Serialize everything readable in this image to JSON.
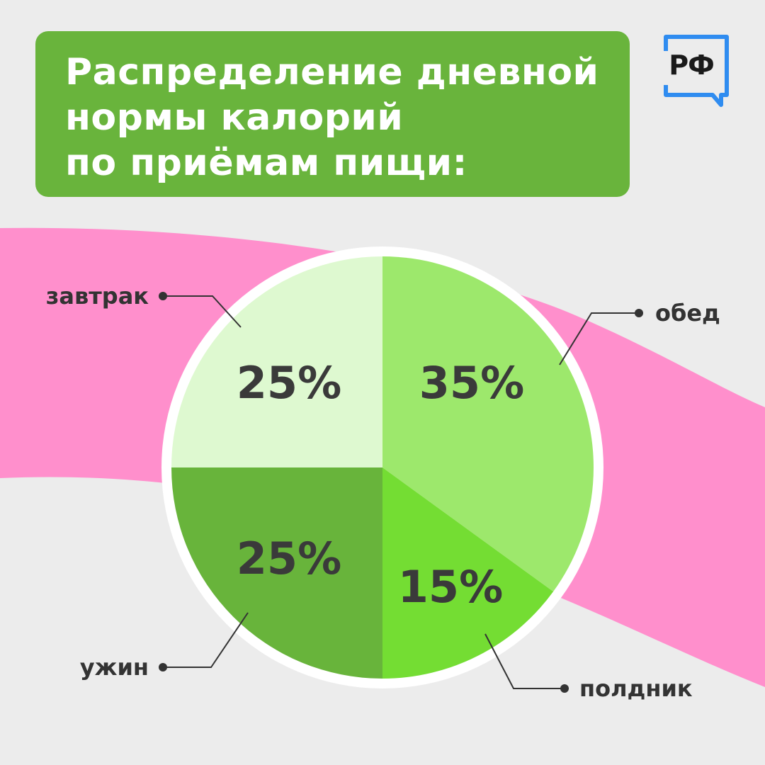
{
  "title_lines": [
    "Распределение дневной",
    "нормы калорий",
    "по приёмам пищи:"
  ],
  "logo": {
    "text": "РФ",
    "icon": "rf-speech-bubble-icon"
  },
  "colors": {
    "background": "#ececec",
    "title_box": "#69b43c",
    "ribbon": "#ff8fcc",
    "pie_ring": "#ffffff",
    "label_text": "#333333",
    "value_text": "#3a3a3a",
    "logo_frame": "#2f8cf0"
  },
  "chart_data": {
    "type": "pie",
    "title": "Распределение дневной нормы калорий по приёмам пищи:",
    "unit": "%",
    "slices": [
      {
        "label": "обед",
        "value": 35,
        "display": "35%",
        "color": "#9de86c"
      },
      {
        "label": "полдник",
        "value": 15,
        "display": "15%",
        "color": "#74dd33"
      },
      {
        "label": "ужин",
        "value": 25,
        "display": "25%",
        "color": "#68b43b"
      },
      {
        "label": "завтрак",
        "value": 25,
        "display": "25%",
        "color": "#def9d0"
      }
    ]
  }
}
